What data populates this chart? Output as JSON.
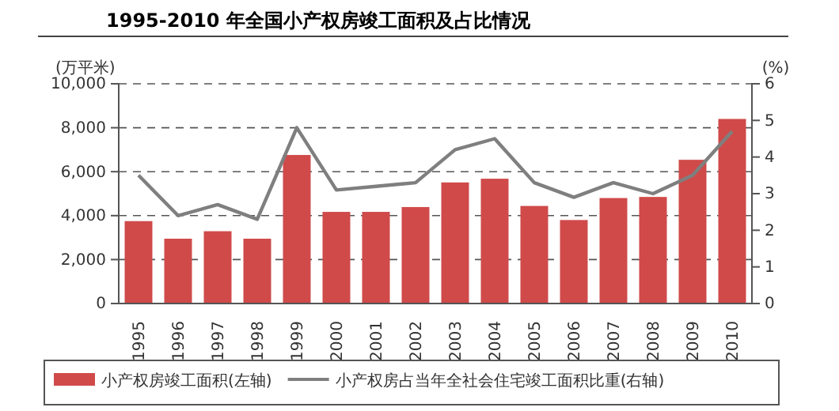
{
  "chart_data": {
    "type": "bar",
    "title": "1995-2010 年全国小产权房竣工面积及占比情况",
    "ylabel": "(万平米)",
    "y2label": "(%)",
    "categories": [
      "1995",
      "1996",
      "1997",
      "1998",
      "1999",
      "2000",
      "2001",
      "2002",
      "2003",
      "2004",
      "2005",
      "2006",
      "2007",
      "2008",
      "2009",
      "2010"
    ],
    "series": [
      {
        "name": "小产权房竣工面积(左轴)",
        "color": "#d04a4a",
        "values": [
          3750,
          2950,
          3290,
          2950,
          6760,
          4170,
          4170,
          4390,
          5510,
          5680,
          4440,
          3800,
          4800,
          4850,
          6540,
          8400
        ]
      },
      {
        "name": "小产权房占当年全社会住宅竣工面积比重(右轴)",
        "type": "line",
        "axis": "y2",
        "color": "#7f7f7f",
        "values": [
          3.5,
          2.4,
          2.7,
          2.3,
          4.8,
          3.1,
          3.2,
          3.3,
          4.2,
          4.5,
          3.3,
          2.9,
          3.3,
          3.0,
          3.5,
          4.7
        ]
      }
    ],
    "ylim": [
      0,
      10000
    ],
    "yticks": [
      {
        "value": 0,
        "label": "0"
      },
      {
        "value": 2000,
        "label": "2,000"
      },
      {
        "value": 4000,
        "label": "4,000"
      },
      {
        "value": 6000,
        "label": "6,000"
      },
      {
        "value": 8000,
        "label": "8,000"
      },
      {
        "value": 10000,
        "label": "10,000"
      }
    ],
    "y2lim": [
      0,
      6
    ],
    "y2ticks": [
      0,
      1,
      2,
      3,
      4,
      5,
      6
    ],
    "grid": "y",
    "legend": "bottom",
    "line_style": "solid"
  }
}
